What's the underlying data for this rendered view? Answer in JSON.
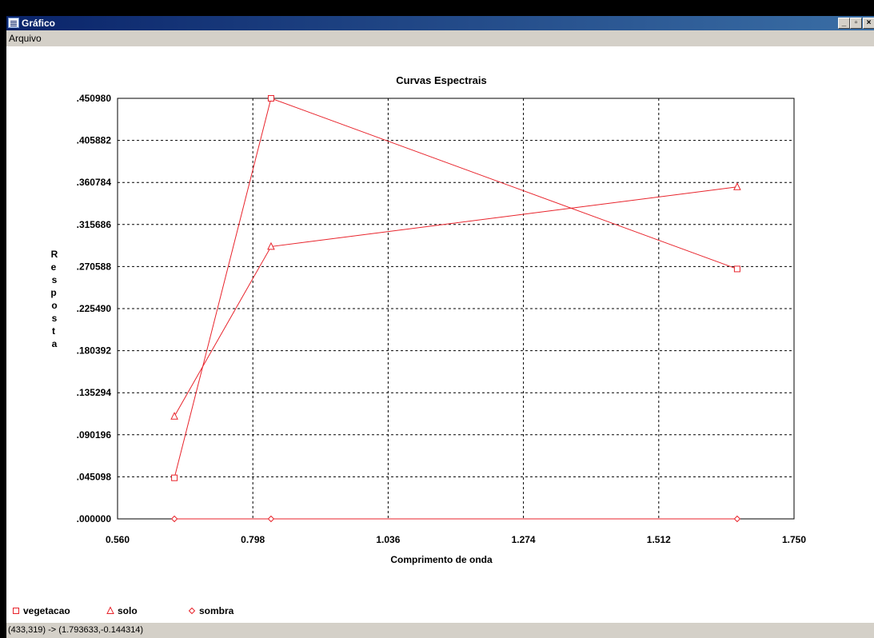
{
  "window": {
    "title": "Gráfico",
    "minimize_glyph": "_",
    "maximize_glyph": "▫",
    "close_glyph": "×"
  },
  "menu": {
    "items": [
      {
        "label": "Arquivo"
      }
    ]
  },
  "status": {
    "text": "(433,319) -> (1.793633,-0.144314)"
  },
  "icons": {
    "app": "chart-window-icon"
  },
  "colors": {
    "series": "#e8232b",
    "grid": "#000000",
    "background": "#ffffff"
  },
  "chart_data": {
    "type": "line",
    "title": "Curvas Espectrais",
    "xlabel": "Comprimento de onda",
    "ylabel": "Resposta",
    "xlim": [
      0.56,
      1.75
    ],
    "ylim": [
      0.0,
      0.45098
    ],
    "xticks": [
      "0.560",
      "0.798",
      "1.036",
      "1.274",
      "1.512",
      "1.750"
    ],
    "yticks": [
      ".000000",
      ".045098",
      ".090196",
      ".135294",
      ".180392",
      ".225490",
      ".270588",
      ".315686",
      ".360784",
      ".405882",
      ".450980"
    ],
    "grid": true,
    "legend_position": "bottom-left",
    "x": [
      0.66,
      0.83,
      1.65
    ],
    "series": [
      {
        "name": "vegetacao",
        "marker": "square",
        "values": [
          0.044,
          0.451,
          0.268
        ]
      },
      {
        "name": "solo",
        "marker": "triangle",
        "values": [
          0.11,
          0.292,
          0.356
        ]
      },
      {
        "name": "sombra",
        "marker": "diamond",
        "values": [
          0.0,
          0.0,
          0.0
        ]
      }
    ]
  }
}
